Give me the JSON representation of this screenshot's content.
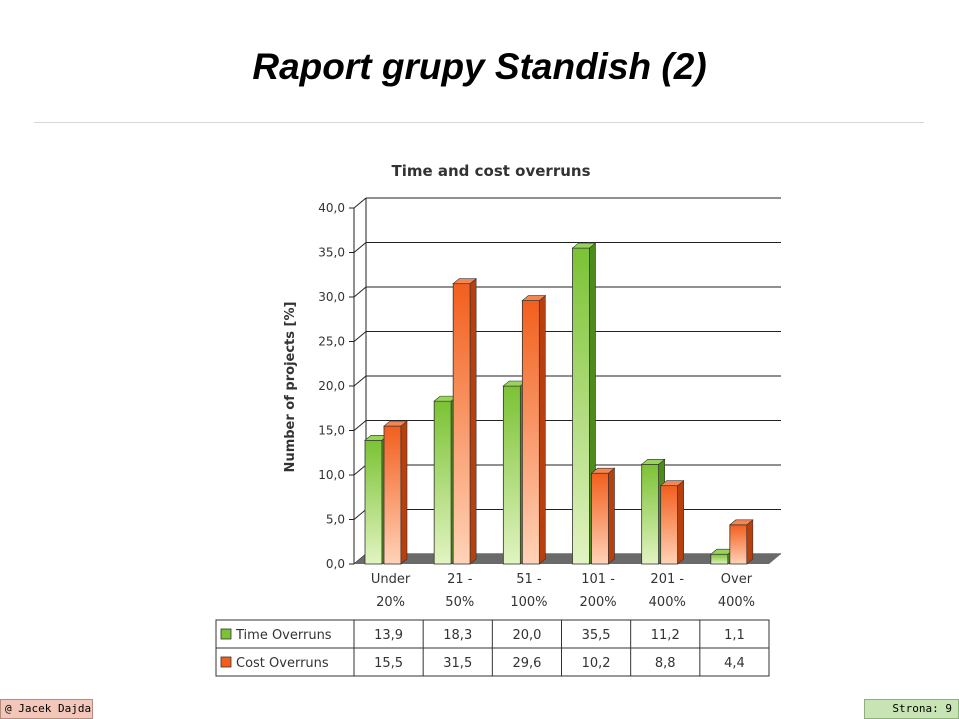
{
  "slide": {
    "title": "Raport grupy Standish (2)",
    "footer_left": "@ Jacek Dajda",
    "footer_right": "Strona: 9"
  },
  "chart_data": {
    "type": "bar",
    "title": "Time and cost overruns",
    "ylabel": "Number of projects [%]",
    "xlabel": "",
    "ylim": [
      0,
      40
    ],
    "yticks": [
      "0,0",
      "5,0",
      "10,0",
      "15,0",
      "20,0",
      "25,0",
      "30,0",
      "35,0",
      "40,0"
    ],
    "categories": [
      [
        "Under",
        "20%"
      ],
      [
        "21 -",
        "50%"
      ],
      [
        "51 -",
        "100%"
      ],
      [
        "101 -",
        "200%"
      ],
      [
        "201 -",
        "400%"
      ],
      [
        "Over",
        "400%"
      ]
    ],
    "series": [
      {
        "name": "Time Overruns",
        "values": [
          13.9,
          18.3,
          20.0,
          35.5,
          11.2,
          1.1
        ],
        "labels": [
          "13,9",
          "18,3",
          "20,0",
          "35,5",
          "11,2",
          "1,1"
        ],
        "color": "#7bc234"
      },
      {
        "name": "Cost Overruns",
        "values": [
          15.5,
          31.5,
          29.6,
          10.2,
          8.8,
          4.4
        ],
        "labels": [
          "15,5",
          "31,5",
          "29,6",
          "10,2",
          "8,8",
          "4,4"
        ],
        "color": "#f25f1d"
      }
    ],
    "grid": true,
    "legend": "data table below chart"
  }
}
